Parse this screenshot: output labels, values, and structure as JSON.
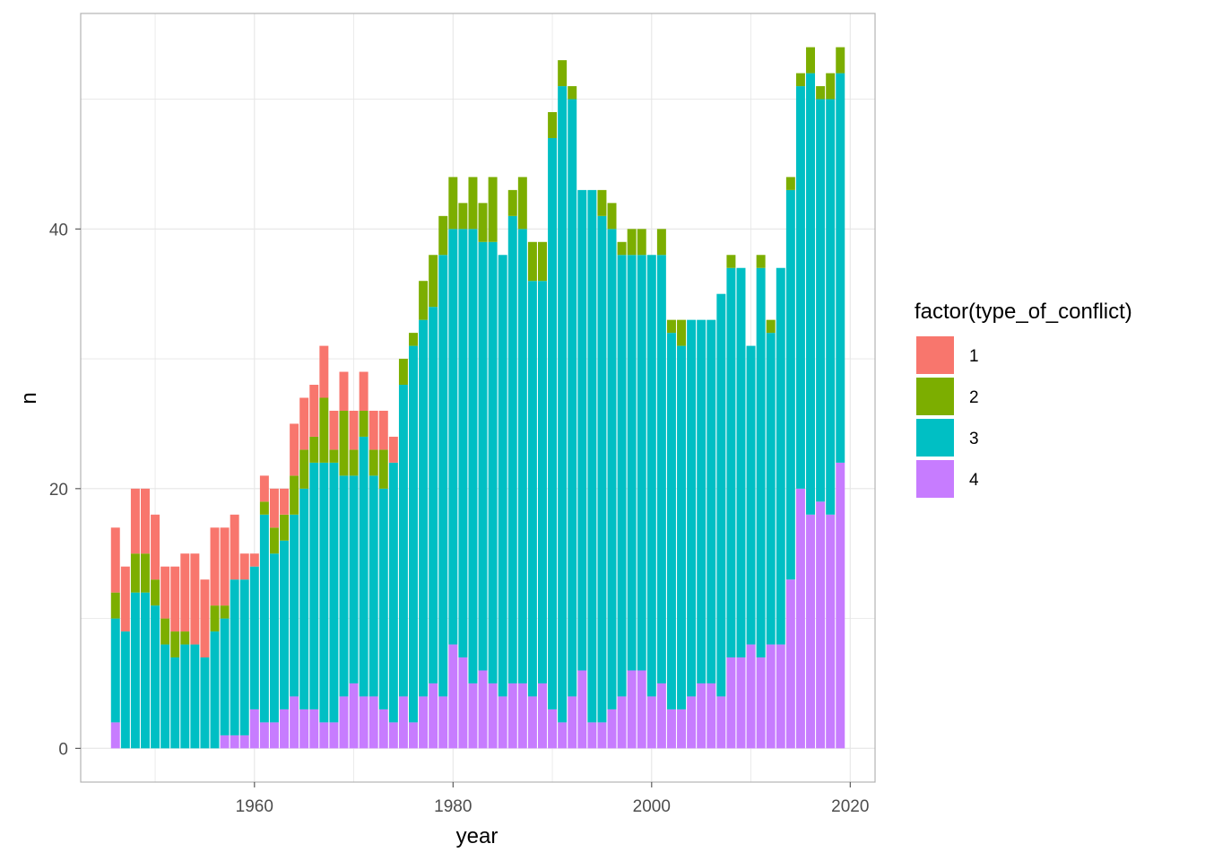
{
  "chart_data": {
    "type": "bar",
    "stacked": true,
    "title": "",
    "xlabel": "year",
    "ylabel": "n",
    "xlim": [
      1942.5,
      2022.5
    ],
    "ylim": [
      -2.6,
      56.6
    ],
    "x_ticks": [
      1960,
      1980,
      2000,
      2020
    ],
    "y_ticks": [
      0,
      20,
      40
    ],
    "grid": true,
    "legend": {
      "title": "factor(type_of_conflict)",
      "position": "right"
    },
    "x": [
      1946,
      1947,
      1948,
      1949,
      1950,
      1951,
      1952,
      1953,
      1954,
      1955,
      1956,
      1957,
      1958,
      1959,
      1960,
      1961,
      1962,
      1963,
      1964,
      1965,
      1966,
      1967,
      1968,
      1969,
      1970,
      1971,
      1972,
      1973,
      1974,
      1975,
      1976,
      1977,
      1978,
      1979,
      1980,
      1981,
      1982,
      1983,
      1984,
      1985,
      1986,
      1987,
      1988,
      1989,
      1990,
      1991,
      1992,
      1993,
      1994,
      1995,
      1996,
      1997,
      1998,
      1999,
      2000,
      2001,
      2002,
      2003,
      2004,
      2005,
      2006,
      2007,
      2008,
      2009,
      2010,
      2011,
      2012,
      2013,
      2014,
      2015,
      2016,
      2017,
      2018,
      2019
    ],
    "series": [
      {
        "name": "4",
        "color": "#C77CFF",
        "values": [
          2,
          0,
          0,
          0,
          0,
          0,
          0,
          0,
          0,
          0,
          0,
          1,
          1,
          1,
          3,
          2,
          2,
          3,
          4,
          3,
          3,
          2,
          2,
          4,
          5,
          4,
          4,
          3,
          2,
          4,
          2,
          4,
          5,
          4,
          8,
          7,
          5,
          6,
          5,
          4,
          5,
          5,
          4,
          5,
          3,
          2,
          4,
          6,
          2,
          2,
          3,
          4,
          6,
          6,
          4,
          5,
          3,
          3,
          4,
          5,
          5,
          4,
          7,
          7,
          8,
          7,
          8,
          8,
          13,
          20,
          18,
          19,
          18,
          22
        ]
      },
      {
        "name": "3",
        "color": "#00BFC4",
        "values": [
          8,
          9,
          12,
          12,
          11,
          8,
          7,
          8,
          8,
          7,
          9,
          9,
          12,
          12,
          11,
          16,
          13,
          13,
          14,
          17,
          19,
          20,
          20,
          17,
          16,
          20,
          17,
          17,
          20,
          24,
          29,
          29,
          29,
          34,
          32,
          33,
          35,
          33,
          34,
          34,
          36,
          35,
          32,
          31,
          44,
          49,
          46,
          37,
          41,
          39,
          37,
          34,
          32,
          32,
          34,
          33,
          29,
          28,
          29,
          28,
          28,
          31,
          30,
          30,
          23,
          30,
          24,
          29,
          30,
          31,
          34,
          31,
          32,
          30
        ]
      },
      {
        "name": "2",
        "color": "#7CAE00",
        "values": [
          2,
          0,
          3,
          3,
          2,
          2,
          2,
          1,
          0,
          0,
          2,
          1,
          0,
          0,
          0,
          1,
          2,
          2,
          3,
          3,
          2,
          5,
          1,
          5,
          2,
          2,
          2,
          3,
          0,
          2,
          1,
          3,
          4,
          3,
          4,
          2,
          4,
          3,
          5,
          0,
          2,
          4,
          3,
          3,
          2,
          2,
          1,
          0,
          0,
          2,
          2,
          1,
          2,
          2,
          0,
          2,
          1,
          2,
          0,
          0,
          0,
          0,
          1,
          0,
          0,
          1,
          1,
          0,
          1,
          1,
          2,
          1,
          2,
          2
        ]
      },
      {
        "name": "1",
        "color": "#F8766D",
        "values": [
          5,
          5,
          5,
          5,
          5,
          4,
          5,
          6,
          7,
          6,
          6,
          6,
          5,
          2,
          1,
          2,
          3,
          2,
          4,
          4,
          4,
          4,
          3,
          3,
          3,
          3,
          3,
          3,
          2,
          0,
          0,
          0,
          0,
          0,
          0,
          0,
          0,
          0,
          0,
          0,
          0,
          0,
          0,
          0,
          0,
          0,
          0,
          0,
          0,
          0,
          0,
          0,
          0,
          0,
          0,
          0,
          0,
          0,
          0,
          0,
          0,
          0,
          0,
          0,
          0,
          0,
          0,
          0,
          0,
          0,
          0,
          0,
          0,
          0
        ]
      }
    ]
  }
}
